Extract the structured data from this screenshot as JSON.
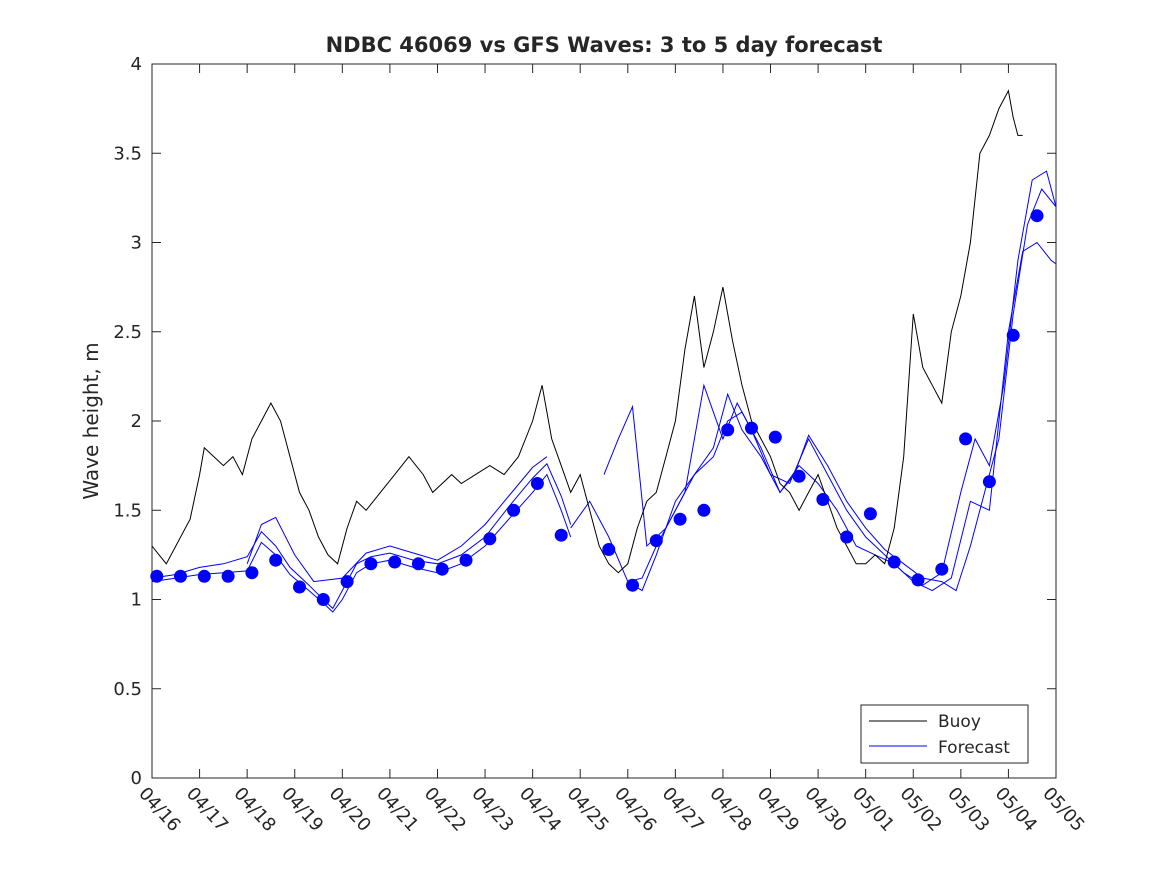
{
  "chart_data": {
    "type": "line",
    "title": "NDBC 46069 vs GFS Waves: 3 to 5 day forecast",
    "xlabel": "",
    "ylabel": "Wave height, m",
    "xlim": [
      0,
      19
    ],
    "ylim": [
      0,
      4
    ],
    "x_tick_labels": [
      "04/16",
      "04/17",
      "04/18",
      "04/19",
      "04/20",
      "04/21",
      "04/22",
      "04/23",
      "04/24",
      "04/25",
      "04/26",
      "04/27",
      "04/28",
      "04/29",
      "04/30",
      "05/01",
      "05/02",
      "05/03",
      "05/04",
      "05/05"
    ],
    "y_tick_labels": [
      "0",
      "0.5",
      "1",
      "1.5",
      "2",
      "2.5",
      "3",
      "3.5",
      "4"
    ],
    "y_ticks": [
      0,
      0.5,
      1,
      1.5,
      2,
      2.5,
      3,
      3.5,
      4
    ],
    "grid": false,
    "legend_position": "bottom-right",
    "legend": [
      "Buoy",
      "Forecast"
    ],
    "colors": {
      "buoy": "#000000",
      "forecast": "#0000ff",
      "axis": "#262626"
    },
    "buoy": {
      "name": "Buoy",
      "x": [
        0,
        0.15,
        0.3,
        0.5,
        0.8,
        1.0,
        1.1,
        1.3,
        1.5,
        1.7,
        1.9,
        2.1,
        2.3,
        2.5,
        2.7,
        2.9,
        3.1,
        3.3,
        3.5,
        3.7,
        3.9,
        4.1,
        4.3,
        4.5,
        4.8,
        5.1,
        5.4,
        5.7,
        5.9,
        6.1,
        6.3,
        6.5,
        6.8,
        7.1,
        7.4,
        7.7,
        8.0,
        8.2,
        8.4,
        8.6,
        8.8,
        9.0,
        9.2,
        9.4,
        9.6,
        9.8,
        10.0,
        10.2,
        10.4,
        10.6,
        10.8,
        11.0,
        11.2,
        11.4,
        11.6,
        11.8,
        12.0,
        12.2,
        12.4,
        12.6,
        12.8,
        13.0,
        13.2,
        13.4,
        13.6,
        13.8,
        14.0,
        14.2,
        14.4,
        14.6,
        14.8,
        15.0,
        15.2,
        15.4,
        15.6,
        15.8,
        16.0,
        16.2,
        16.4,
        16.6,
        16.8,
        17.0,
        17.2,
        17.4,
        17.6,
        17.8,
        18.0,
        18.1,
        18.2,
        18.3
      ],
      "y": [
        1.3,
        1.25,
        1.2,
        1.3,
        1.45,
        1.7,
        1.85,
        1.8,
        1.75,
        1.8,
        1.7,
        1.9,
        2.0,
        2.1,
        2.0,
        1.8,
        1.6,
        1.5,
        1.35,
        1.25,
        1.2,
        1.4,
        1.55,
        1.5,
        1.6,
        1.7,
        1.8,
        1.7,
        1.6,
        1.65,
        1.7,
        1.65,
        1.7,
        1.75,
        1.7,
        1.8,
        2.0,
        2.2,
        1.9,
        1.75,
        1.6,
        1.7,
        1.5,
        1.3,
        1.2,
        1.15,
        1.2,
        1.4,
        1.55,
        1.6,
        1.8,
        2.0,
        2.4,
        2.7,
        2.3,
        2.5,
        2.75,
        2.45,
        2.2,
        2.0,
        1.9,
        1.8,
        1.65,
        1.6,
        1.5,
        1.6,
        1.7,
        1.55,
        1.4,
        1.3,
        1.2,
        1.2,
        1.25,
        1.2,
        1.4,
        1.8,
        2.6,
        2.3,
        2.2,
        2.1,
        2.5,
        2.7,
        3.0,
        3.5,
        3.6,
        3.75,
        3.85,
        3.7,
        3.6,
        3.6
      ]
    },
    "forecast_points": {
      "name": "Forecast",
      "x": [
        0.1,
        0.6,
        1.1,
        1.6,
        2.1,
        2.6,
        3.1,
        3.6,
        4.1,
        4.6,
        5.1,
        5.6,
        6.1,
        6.6,
        7.1,
        7.6,
        8.1,
        8.6,
        9.6,
        10.1,
        10.6,
        11.1,
        11.6,
        12.1,
        12.6,
        13.1,
        13.6,
        14.1,
        14.6,
        15.1,
        15.6,
        16.1,
        16.6,
        17.1,
        17.6,
        18.1,
        18.6
      ],
      "y": [
        1.13,
        1.13,
        1.13,
        1.13,
        1.15,
        1.22,
        1.07,
        1.0,
        1.1,
        1.2,
        1.21,
        1.2,
        1.17,
        1.22,
        1.34,
        1.5,
        1.65,
        1.36,
        1.28,
        1.08,
        1.33,
        1.45,
        1.5,
        1.95,
        1.96,
        1.91,
        1.69,
        1.56,
        1.35,
        1.48,
        1.21,
        1.11,
        1.17,
        1.9,
        1.66,
        2.48,
        3.15
      ]
    },
    "forecast_series": [
      {
        "x": [
          0,
          0.5,
          1.0,
          1.5,
          2.0,
          2.3,
          2.6,
          2.9,
          3.3,
          3.6,
          3.8,
          4.0,
          4.3,
          4.6,
          5.0,
          5.5,
          6.0,
          6.5,
          7.0,
          7.5,
          8.0,
          8.3,
          8.6,
          8.8
        ],
        "y": [
          1.1,
          1.12,
          1.14,
          1.15,
          1.16,
          1.32,
          1.25,
          1.14,
          1.05,
          0.98,
          0.93,
          1.0,
          1.15,
          1.2,
          1.22,
          1.18,
          1.15,
          1.2,
          1.3,
          1.45,
          1.6,
          1.7,
          1.5,
          1.35
        ]
      },
      {
        "x": [
          0,
          0.5,
          1.0,
          1.5,
          2.0,
          2.3,
          2.6,
          2.9,
          3.3,
          3.6,
          3.8,
          4.0,
          4.3,
          4.6,
          5.0,
          5.5,
          6.0,
          6.5,
          7.0,
          7.5,
          8.0,
          8.3,
          8.6,
          8.8
        ],
        "y": [
          1.12,
          1.14,
          1.18,
          1.2,
          1.24,
          1.38,
          1.3,
          1.18,
          1.08,
          1.0,
          0.95,
          1.05,
          1.2,
          1.24,
          1.26,
          1.22,
          1.2,
          1.25,
          1.35,
          1.52,
          1.68,
          1.76,
          1.58,
          1.42
        ]
      },
      {
        "x": [
          2.0,
          2.3,
          2.6,
          3.0,
          3.4,
          4.0,
          4.5,
          5.0,
          5.5,
          6.0,
          6.5,
          7.0,
          7.5,
          8.0,
          8.3
        ],
        "y": [
          1.2,
          1.42,
          1.46,
          1.25,
          1.1,
          1.12,
          1.26,
          1.3,
          1.26,
          1.22,
          1.3,
          1.42,
          1.58,
          1.74,
          1.8
        ]
      },
      {
        "x": [
          8.8,
          9.2,
          9.6,
          10.0,
          10.3,
          10.6,
          11.0,
          11.4,
          11.8,
          12.1,
          12.4,
          12.8,
          13.2,
          13.5,
          13.8,
          14.2,
          14.6,
          15.0,
          15.4,
          15.8,
          16.2,
          16.6,
          16.9,
          17.2,
          17.5,
          17.8,
          18.1,
          18.4,
          18.7,
          19.0
        ],
        "y": [
          1.4,
          1.55,
          1.35,
          1.1,
          1.12,
          1.3,
          1.5,
          1.7,
          1.8,
          2.0,
          2.05,
          1.85,
          1.6,
          1.7,
          1.92,
          1.75,
          1.55,
          1.4,
          1.28,
          1.2,
          1.12,
          1.1,
          1.05,
          1.3,
          1.6,
          1.9,
          2.6,
          3.1,
          3.3,
          3.2
        ]
      },
      {
        "x": [
          9.5,
          9.8,
          10.1,
          10.4,
          10.8,
          11.2,
          11.6,
          12.0,
          12.3,
          12.6,
          13.0,
          13.4,
          13.8,
          14.2,
          14.6,
          15.0,
          15.4,
          15.8,
          16.2,
          16.6,
          17.0,
          17.3,
          17.6,
          17.9,
          18.2,
          18.5,
          18.8,
          19.0
        ],
        "y": [
          1.7,
          1.9,
          2.08,
          1.3,
          1.4,
          1.6,
          2.2,
          1.9,
          2.1,
          1.95,
          1.7,
          1.65,
          1.9,
          1.7,
          1.5,
          1.35,
          1.25,
          1.15,
          1.08,
          1.15,
          1.6,
          1.9,
          1.75,
          2.2,
          2.9,
          3.35,
          3.4,
          3.2
        ]
      },
      {
        "x": [
          10.0,
          10.3,
          10.6,
          11.0,
          11.4,
          11.8,
          12.1,
          12.4,
          12.8,
          13.2,
          13.6,
          14.0,
          14.4,
          14.8,
          15.2,
          15.6,
          16.0,
          16.4,
          16.8,
          17.2,
          17.6,
          18.0,
          18.3,
          18.6,
          18.9,
          19.0
        ],
        "y": [
          1.1,
          1.05,
          1.25,
          1.55,
          1.7,
          1.85,
          2.15,
          1.95,
          1.8,
          1.6,
          1.75,
          1.65,
          1.5,
          1.3,
          1.25,
          1.2,
          1.1,
          1.05,
          1.12,
          1.55,
          1.5,
          2.5,
          2.95,
          3.0,
          2.9,
          2.88
        ]
      }
    ]
  }
}
